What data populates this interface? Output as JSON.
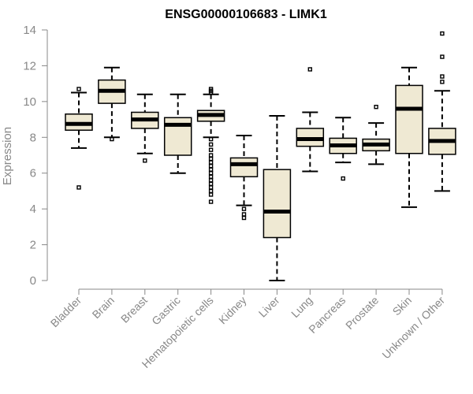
{
  "chart_data": {
    "type": "boxplot",
    "title": "ENSG00000106683 - LIMK1",
    "xlabel": "",
    "ylabel": "Expression",
    "ylim": [
      0,
      14
    ],
    "yticks": [
      0,
      2,
      4,
      6,
      8,
      10,
      12,
      14
    ],
    "categories": [
      "Bladder",
      "Brain",
      "Breast",
      "Gastric",
      "Hematopoietic cells",
      "Kidney",
      "Liver",
      "Lung",
      "Pancreas",
      "Prostate",
      "Skin",
      "Unknown / Other"
    ],
    "boxes": [
      {
        "min": 7.4,
        "q1": 8.4,
        "median": 8.75,
        "q3": 9.3,
        "max": 10.5,
        "outliers": [
          10.7,
          5.2
        ]
      },
      {
        "min": 8.0,
        "q1": 9.9,
        "median": 10.6,
        "q3": 11.2,
        "max": 11.9,
        "outliers": [
          7.9
        ]
      },
      {
        "min": 7.1,
        "q1": 8.5,
        "median": 9.0,
        "q3": 9.4,
        "max": 10.4,
        "outliers": [
          6.7
        ]
      },
      {
        "min": 6.0,
        "q1": 7.0,
        "median": 8.7,
        "q3": 9.1,
        "max": 10.4,
        "outliers": []
      },
      {
        "min": 8.0,
        "q1": 8.9,
        "median": 9.25,
        "q3": 9.5,
        "max": 10.4,
        "outliers": [
          10.5,
          10.6,
          10.7,
          7.9,
          7.6,
          7.3,
          7.0,
          6.8,
          6.6,
          6.4,
          6.2,
          6.0,
          5.8,
          5.6,
          5.4,
          5.2,
          5.0,
          4.8,
          4.4
        ]
      },
      {
        "min": 4.2,
        "q1": 5.8,
        "median": 6.5,
        "q3": 6.85,
        "max": 8.1,
        "outliers": [
          4.0,
          3.7,
          3.5
        ]
      },
      {
        "min": 0.0,
        "q1": 2.4,
        "median": 3.85,
        "q3": 6.2,
        "max": 9.2,
        "outliers": []
      },
      {
        "min": 6.1,
        "q1": 7.5,
        "median": 7.9,
        "q3": 8.5,
        "max": 9.4,
        "outliers": [
          11.8
        ]
      },
      {
        "min": 6.6,
        "q1": 7.1,
        "median": 7.55,
        "q3": 7.95,
        "max": 9.1,
        "outliers": [
          5.7
        ]
      },
      {
        "min": 6.5,
        "q1": 7.25,
        "median": 7.6,
        "q3": 7.9,
        "max": 8.8,
        "outliers": [
          9.7
        ]
      },
      {
        "min": 4.1,
        "q1": 7.1,
        "median": 9.6,
        "q3": 10.9,
        "max": 11.9,
        "outliers": []
      },
      {
        "min": 5.0,
        "q1": 7.05,
        "median": 7.8,
        "q3": 8.5,
        "max": 10.6,
        "outliers": [
          11.1,
          11.4,
          12.5,
          13.8
        ]
      }
    ]
  }
}
